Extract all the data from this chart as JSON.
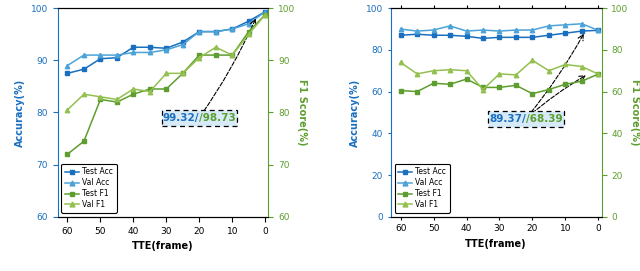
{
  "tte_x": [
    60,
    55,
    50,
    45,
    40,
    35,
    30,
    25,
    20,
    15,
    10,
    5,
    0
  ],
  "pie_test_acc": [
    87.5,
    88.3,
    90.3,
    90.5,
    92.5,
    92.5,
    92.3,
    93.5,
    95.5,
    95.5,
    96.0,
    97.5,
    99.32
  ],
  "pie_val_acc": [
    89.0,
    91.0,
    91.0,
    91.0,
    91.5,
    91.5,
    92.0,
    93.0,
    95.5,
    95.5,
    96.0,
    97.0,
    99.32
  ],
  "pie_test_f1": [
    72.0,
    74.5,
    82.5,
    82.0,
    83.5,
    84.5,
    84.5,
    87.5,
    91.0,
    91.0,
    91.0,
    95.5,
    98.73
  ],
  "pie_val_f1": [
    80.5,
    83.5,
    83.0,
    82.5,
    84.5,
    84.0,
    87.5,
    87.5,
    90.5,
    92.5,
    91.0,
    95.0,
    98.73
  ],
  "jaad_test_acc": [
    87.0,
    87.5,
    87.0,
    87.0,
    86.5,
    85.5,
    86.0,
    86.0,
    86.0,
    87.0,
    88.0,
    89.0,
    89.37
  ],
  "jaad_val_acc": [
    90.0,
    89.0,
    89.5,
    91.5,
    89.0,
    89.5,
    89.0,
    89.5,
    89.5,
    91.5,
    92.0,
    92.5,
    89.37
  ],
  "jaad_test_f1": [
    60.5,
    60.0,
    64.0,
    63.5,
    66.0,
    62.0,
    62.0,
    63.0,
    59.0,
    61.0,
    63.5,
    65.0,
    68.39
  ],
  "jaad_val_f1": [
    74.0,
    68.5,
    70.0,
    70.5,
    70.0,
    61.0,
    68.5,
    68.0,
    75.0,
    70.0,
    73.0,
    72.0,
    68.39
  ],
  "pie_ylim_l": [
    60,
    100
  ],
  "pie_ylim_r": [
    60,
    100
  ],
  "jaad_ylim_l": [
    0,
    100
  ],
  "jaad_ylim_r": [
    0,
    100
  ],
  "c_test_acc": "#1A6FBF",
  "c_val_acc": "#4CA3D8",
  "c_test_f1": "#5E9E2F",
  "c_val_f1": "#93C050",
  "xlabel": "TTE(frame)",
  "left_ylabel": "Accuracy(%)",
  "right_ylabel": "F1 Score(%)",
  "pie_ann_blue": "99.32",
  "pie_ann_green": "98.73",
  "jaad_ann_blue": "89.37",
  "jaad_ann_green": "68.39"
}
